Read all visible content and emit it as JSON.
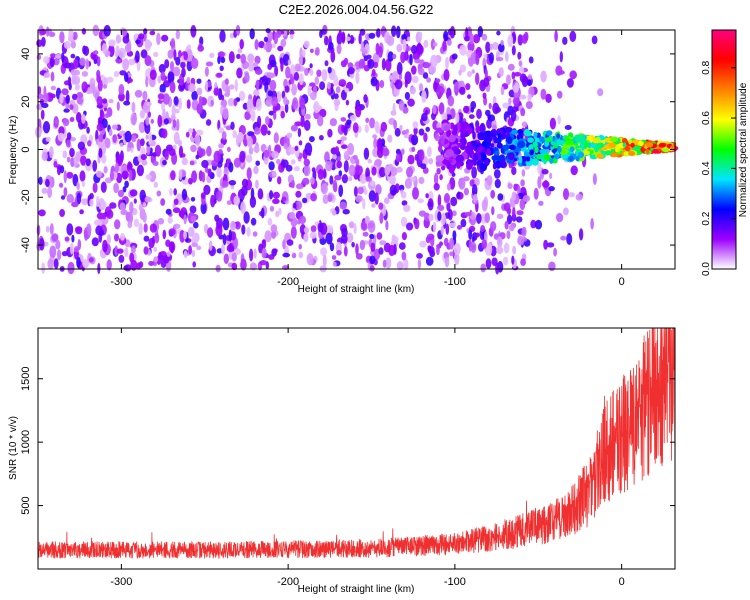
{
  "title": "C2E2.2026.004.04.56.G22",
  "chart_data": [
    {
      "type": "heatmap",
      "xlabel": "Height of straight line (km)",
      "ylabel": "Frequency (Hz)",
      "xlim": [
        -350,
        32
      ],
      "ylim": [
        -50,
        50
      ],
      "xticks": [
        -300,
        -200,
        -100,
        0
      ],
      "yticks": [
        -40,
        -20,
        0,
        20,
        40
      ],
      "colorbar": {
        "label": "Normalized spectral amplitude",
        "range": [
          0,
          0.95
        ],
        "ticks": [
          0.0,
          0.2,
          0.4,
          0.6,
          0.8
        ],
        "tick_labels": [
          "0.0",
          "0.2",
          "0.4",
          "0.6",
          "0.8"
        ],
        "colormap": [
          "#ffffff",
          "#9b00ff",
          "#0000ff",
          "#00e5ff",
          "#00ff00",
          "#ffff00",
          "#ff8000",
          "#ff0000",
          "#ff0080"
        ]
      },
      "signal": {
        "description": "narrow band near 0 Hz emerging above about -110 km; broadband noise scatter below about -60 km",
        "band_center_hz": 1,
        "band_start_km": -110,
        "noise_fades_km": -55,
        "peak_amplitude": 0.95
      }
    },
    {
      "type": "line",
      "xlabel": "Height of straight line (km)",
      "ylabel": "SNR (10 * v/v)",
      "xlim": [
        -350,
        32
      ],
      "ylim": [
        0,
        1900
      ],
      "xticks": [
        -300,
        -200,
        -100,
        0
      ],
      "yticks": [
        500,
        1000,
        1500
      ],
      "series": [
        {
          "color": "#f03030",
          "x": [
            -350,
            -300,
            -250,
            -200,
            -150,
            -100,
            -80,
            -60,
            -40,
            -30,
            -20,
            -10,
            0,
            10,
            20,
            30
          ],
          "y": [
            150,
            150,
            150,
            155,
            160,
            200,
            240,
            300,
            380,
            450,
            600,
            900,
            1050,
            1200,
            1400,
            1550
          ]
        }
      ]
    }
  ]
}
